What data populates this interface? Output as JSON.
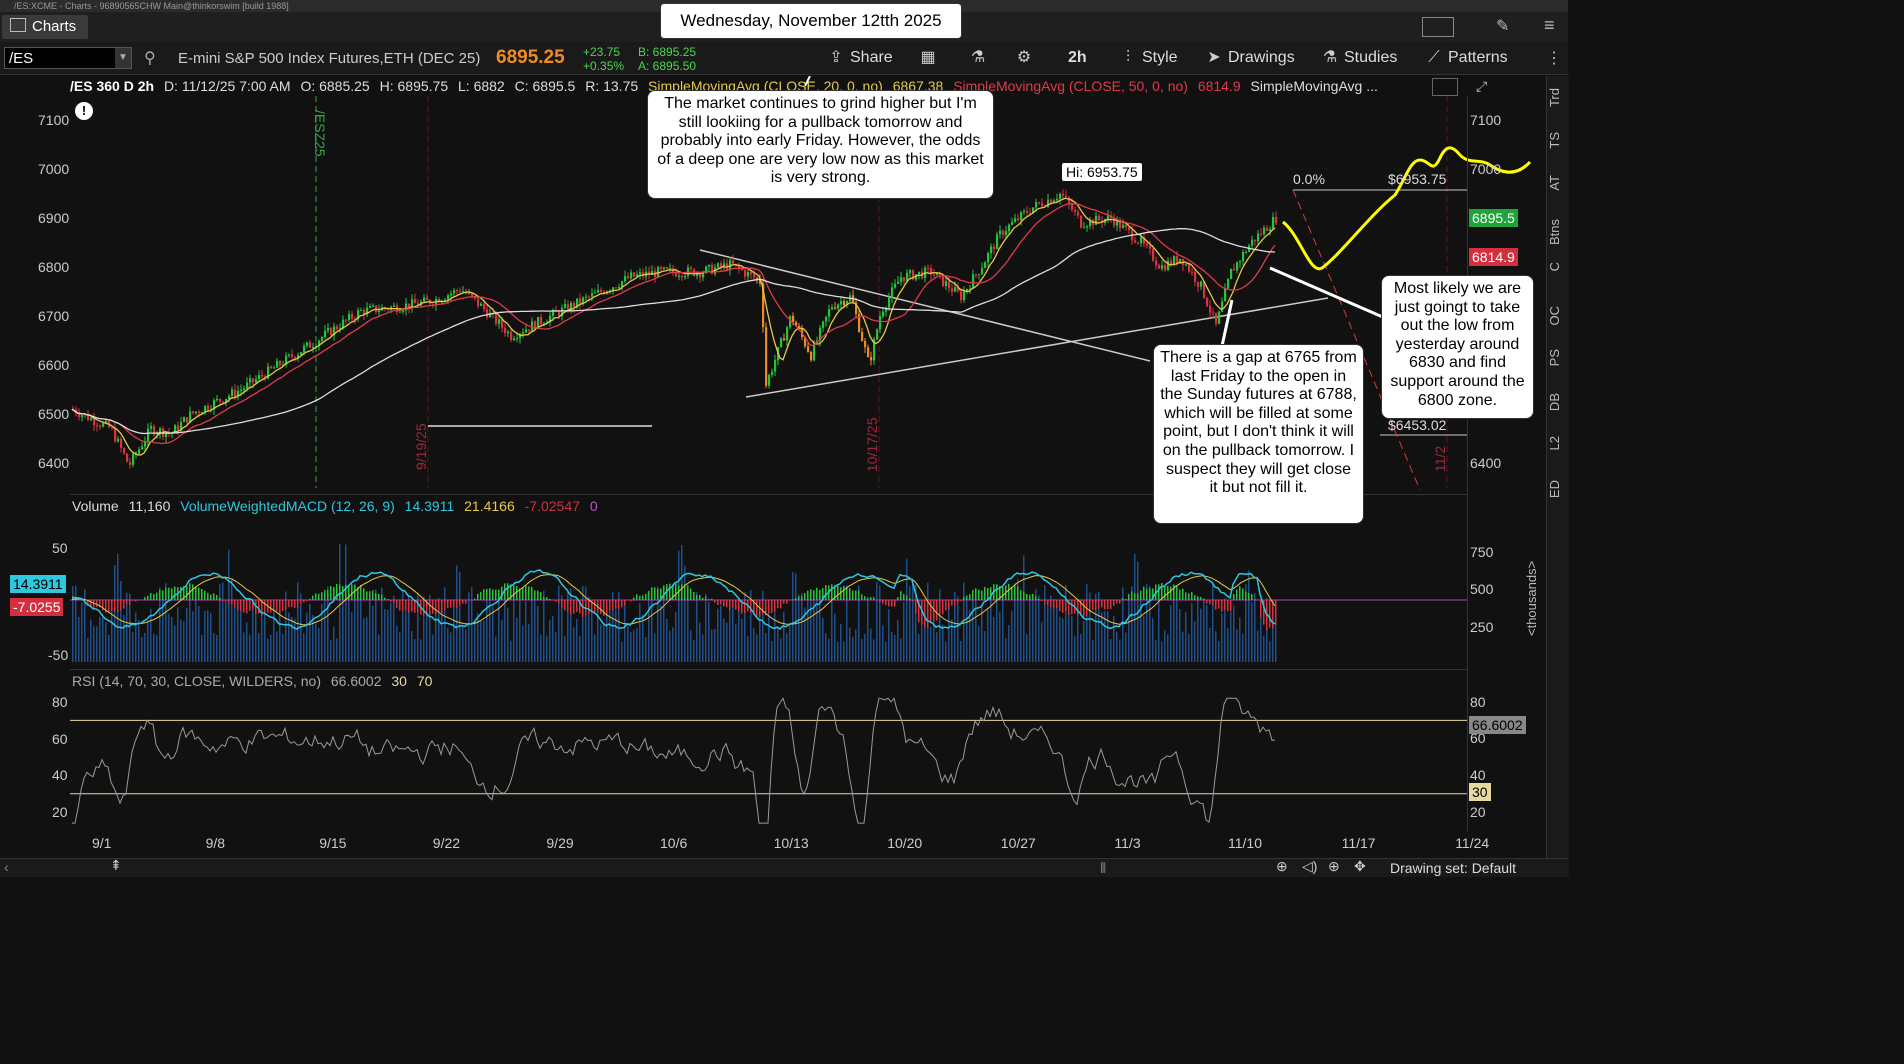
{
  "window": {
    "title": "/ES:XCME - Charts - 96890565CHW Main@thinkorswim [build 1988]"
  },
  "tab": {
    "label": "Charts"
  },
  "date_banner": "Wednesday, November 12tth 2025",
  "toolbar": {
    "symbol": "/ES",
    "description": "E-mini S&P 500 Index Futures,ETH (DEC 25)",
    "last_price": "6895.25",
    "net_change": "+23.75",
    "pct_change": "+0.35%",
    "bid": "B: 6895.25",
    "ask": "A: 6895.50",
    "share": "Share",
    "timeframe": "2h",
    "style": "Style",
    "drawings": "Drawings",
    "studies": "Studies",
    "patterns": "Patterns"
  },
  "chart_header": {
    "title": "/ES 360 D 2h",
    "date": "D: 11/12/25 7:00 AM",
    "open": "O: 6885.25",
    "high": "H: 6895.75",
    "low": "L: 6882",
    "close": "C: 6895.5",
    "range": "R: 13.75",
    "sma20": "SimpleMovingAvg (CLOSE, 20, 0, no)",
    "sma20_val": "6867.38",
    "sma50": "SimpleMovingAvg (CLOSE, 50, 0, no)",
    "sma50_val": "6814.9",
    "sma200": "SimpleMovingAvg ..."
  },
  "price_axis": {
    "ticks": [
      "7100",
      "7000",
      "6900",
      "6800",
      "6700",
      "6600",
      "6500",
      "6400"
    ]
  },
  "price_tags": {
    "last": "6895.5",
    "sma50": "6814.9"
  },
  "annotations": {
    "hi_label": "Hi: 6953.75",
    "fib_pct": "0.0%",
    "fib_price": "$6953.75",
    "low_price": "$6453.02",
    "contract_roll": "/ESZ25",
    "date_mark_1": "9/19/25",
    "date_mark_2": "10/17/25",
    "date_mark_3": "11/2"
  },
  "callouts": {
    "top": "The market continues to grind higher but I'm still lookiing for a pullback tomorrow and probably into early Friday.  However, the odds of a deep one are very low now as this market is very strong.",
    "gap": "There is a gap at 6765 from last Friday to the open in the Sunday futures at 6788, which will be filled at some point, but I don't think it will on the pullback tomorrow.  I suspect they will get close it but not fill it.",
    "right": "Most likely we are just goingt to take out the low from yesterday around 6830 and find support around the 6800 zone."
  },
  "volume_panel": {
    "label": "Volume",
    "volume": "11,160",
    "macd_label": "VolumeWeightedMACD (12, 26, 9)",
    "macd_val": "14.3911",
    "signal_val": "21.4166",
    "diff_val": "-7.02547",
    "zero_val": "0",
    "left_ticks": [
      "50",
      "-50"
    ],
    "right_ticks": [
      "750",
      "500",
      "250"
    ],
    "unit": "<thousands>",
    "tag_macd": "14.3911",
    "tag_diff": "-7.0255"
  },
  "rsi_panel": {
    "label": "RSI (14, 70, 30, CLOSE, WILDERS, no)",
    "value": "66.6002",
    "oversold": "30",
    "overbought": "70",
    "ticks": [
      "80",
      "60",
      "40",
      "20"
    ],
    "tag_value": "66.6002",
    "tag_30": "30"
  },
  "time_axis": {
    "labels": [
      "9/1",
      "9/8",
      "9/15",
      "9/22",
      "9/29",
      "10/6",
      "10/13",
      "10/20",
      "10/27",
      "11/3",
      "11/10",
      "11/17",
      "11/24"
    ]
  },
  "right_tabs": [
    "Trd",
    "TS",
    "AT",
    "Btns",
    "C",
    "OC",
    "PS",
    "DB",
    "L2",
    "ED"
  ],
  "status": {
    "drawing_set": "Drawing set: Default"
  },
  "colors": {
    "sma20": "#e6c84a",
    "sma50": "#e03a4a",
    "sma200": "#dddddd",
    "projection": "#ffff00",
    "macd": "#2ec7e0",
    "rsi": "#9a9a9a"
  }
}
